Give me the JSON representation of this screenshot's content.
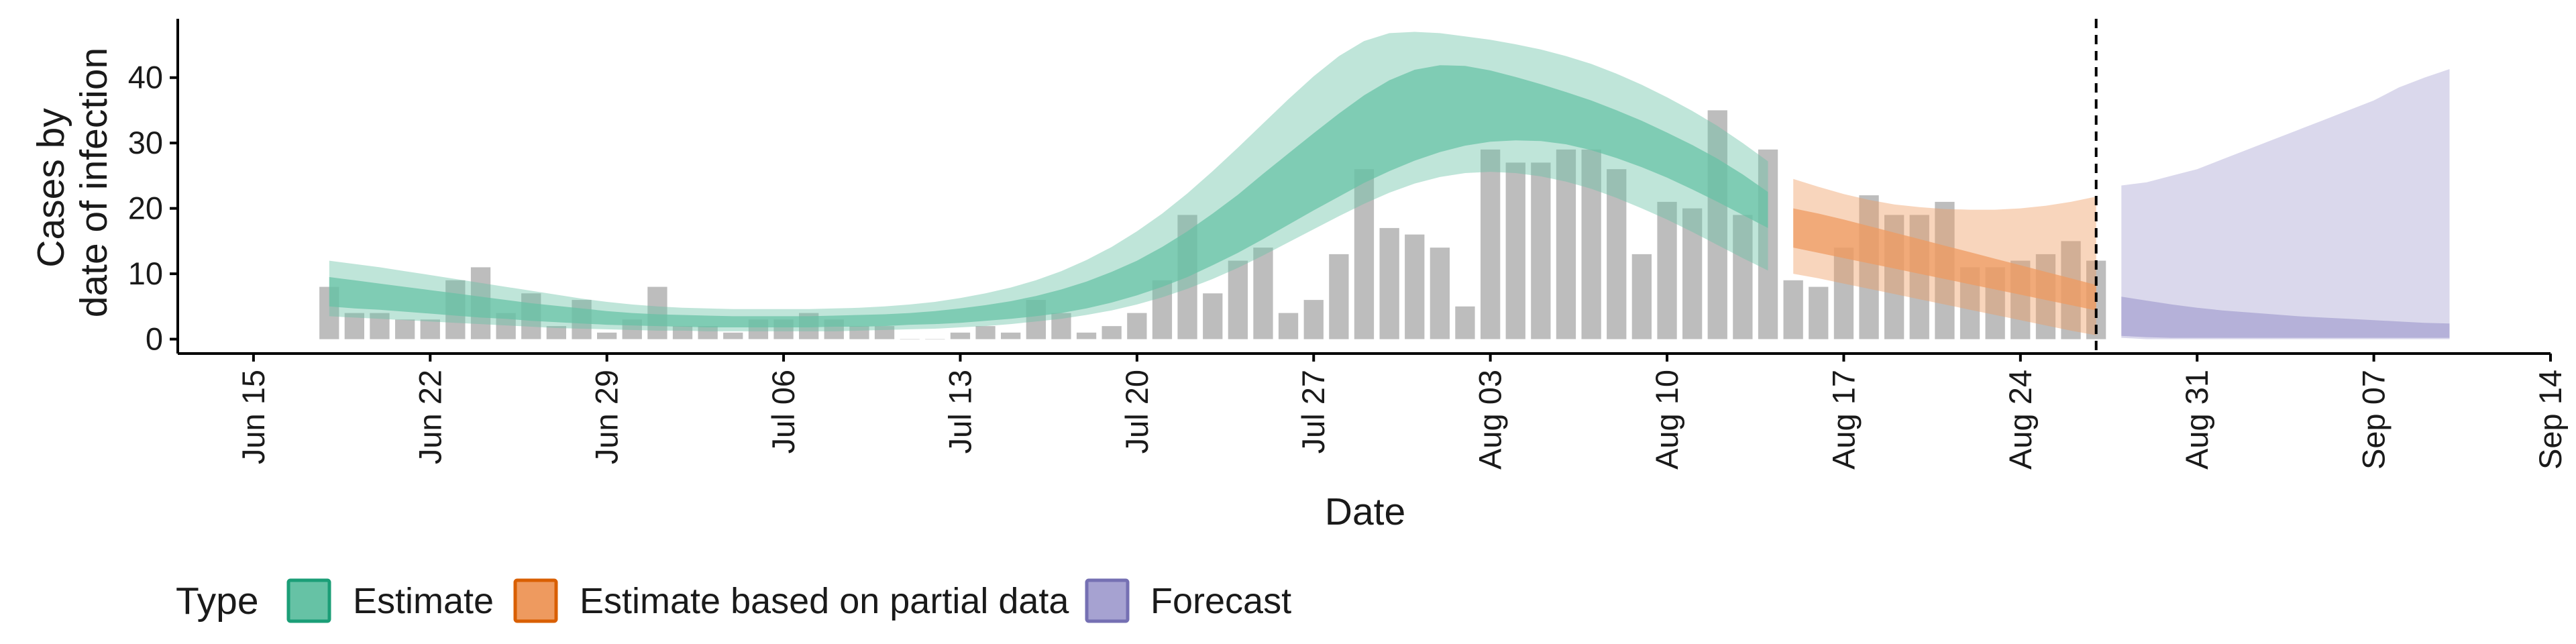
{
  "chart_data": {
    "type": "bar",
    "xlabel": "Date",
    "ylabel_lines": [
      "Cases by",
      "date of infection"
    ],
    "x_range": [
      "2020-06-12",
      "2020-09-14"
    ],
    "ylim": [
      -2.2,
      49
    ],
    "y_ticks": [
      0,
      10,
      20,
      30,
      40
    ],
    "x_ticks": [
      {
        "date": "2020-06-15",
        "label": "Jun 15"
      },
      {
        "date": "2020-06-22",
        "label": "Jun 22"
      },
      {
        "date": "2020-06-29",
        "label": "Jun 29"
      },
      {
        "date": "2020-07-06",
        "label": "Jul 06"
      },
      {
        "date": "2020-07-13",
        "label": "Jul 13"
      },
      {
        "date": "2020-07-20",
        "label": "Jul 20"
      },
      {
        "date": "2020-07-27",
        "label": "Jul 27"
      },
      {
        "date": "2020-08-03",
        "label": "Aug 03"
      },
      {
        "date": "2020-08-10",
        "label": "Aug 10"
      },
      {
        "date": "2020-08-17",
        "label": "Aug 17"
      },
      {
        "date": "2020-08-24",
        "label": "Aug 24"
      },
      {
        "date": "2020-08-31",
        "label": "Aug 31"
      },
      {
        "date": "2020-09-07",
        "label": "Sep 07"
      },
      {
        "date": "2020-09-14",
        "label": "Sep 14"
      }
    ],
    "bars": {
      "start_date": "2020-06-18",
      "color": "#bdbdbd",
      "values": [
        8,
        4,
        4,
        3,
        3,
        9,
        11,
        4,
        7,
        2,
        6,
        1,
        3,
        8,
        2,
        2,
        1,
        3,
        3,
        4,
        3,
        2,
        2,
        0,
        0,
        1,
        2,
        1,
        6,
        4,
        1,
        2,
        4,
        9,
        19,
        7,
        12,
        14,
        4,
        6,
        13,
        26,
        17,
        16,
        14,
        5,
        29,
        27,
        27,
        29,
        29,
        26,
        13,
        21,
        20,
        35,
        19,
        29,
        9,
        8,
        14,
        22,
        19,
        19,
        21,
        11,
        11,
        12,
        13,
        15,
        12
      ]
    },
    "vline_date": "2020-08-27",
    "series": [
      {
        "name": "Estimate",
        "fill": "#66c2a5",
        "border": "#1b9e77",
        "start_date": "2020-06-18",
        "median": [
          7.5,
          7,
          6.6,
          6.2,
          5.8,
          5.4,
          5,
          4.6,
          4.2,
          3.9,
          3.6,
          3.3,
          3.1,
          2.9,
          2.8,
          2.7,
          2.6,
          2.6,
          2.6,
          2.6,
          2.7,
          2.8,
          2.9,
          3.1,
          3.3,
          3.6,
          4,
          4.4,
          5,
          5.7,
          6.6,
          7.8,
          9.2,
          10.9,
          12.9,
          15.2,
          17.7,
          20.4,
          23.1,
          25.8,
          28.4,
          30.8,
          32.9,
          34.6,
          35.9,
          36.7,
          36.9,
          36.6,
          36,
          35.2,
          34.2,
          33,
          31.5,
          29.8,
          28,
          26,
          23.8,
          21.2
        ],
        "lo50": [
          5,
          4.7,
          4.5,
          4.2,
          3.9,
          3.6,
          3.3,
          3.1,
          2.8,
          2.6,
          2.4,
          2.2,
          2.1,
          2,
          1.9,
          1.8,
          1.8,
          1.8,
          1.8,
          1.8,
          1.9,
          1.9,
          2,
          2.2,
          2.3,
          2.5,
          2.8,
          3.1,
          3.5,
          4,
          4.7,
          5.6,
          6.7,
          8,
          9.5,
          11.3,
          13.2,
          15.3,
          17.5,
          19.7,
          21.8,
          23.9,
          25.7,
          27.3,
          28.6,
          29.6,
          30.2,
          30.4,
          30.3,
          29.8,
          28.9,
          27.7,
          26.3,
          24.7,
          22.9,
          21,
          19,
          17
        ],
        "hi50": [
          9.5,
          9,
          8.5,
          8,
          7.5,
          7,
          6.5,
          6,
          5.5,
          5.1,
          4.7,
          4.3,
          4,
          3.8,
          3.7,
          3.6,
          3.5,
          3.5,
          3.5,
          3.5,
          3.6,
          3.7,
          3.8,
          4,
          4.3,
          4.7,
          5.2,
          5.8,
          6.6,
          7.6,
          8.8,
          10.3,
          12,
          14.1,
          16.5,
          19.2,
          22.1,
          25.3,
          28.4,
          31.5,
          34.5,
          37.3,
          39.6,
          41.2,
          41.9,
          41.8,
          41.1,
          40.1,
          39,
          37.8,
          36.5,
          35,
          33.4,
          31.6,
          29.7,
          27.6,
          25.2,
          22.5
        ],
        "lo90": [
          3.5,
          3.3,
          3.1,
          2.9,
          2.7,
          2.5,
          2.3,
          2.1,
          1.9,
          1.7,
          1.6,
          1.5,
          1.4,
          1.3,
          1.3,
          1.2,
          1.2,
          1.2,
          1.2,
          1.2,
          1.2,
          1.3,
          1.4,
          1.5,
          1.6,
          1.8,
          2,
          2.3,
          2.7,
          3.1,
          3.7,
          4.4,
          5.3,
          6.4,
          7.7,
          9.2,
          10.9,
          12.8,
          14.8,
          16.8,
          18.8,
          20.7,
          22.4,
          23.8,
          24.8,
          25.4,
          25.6,
          25.4,
          24.9,
          24.1,
          23,
          21.6,
          20,
          18.3,
          16.4,
          14.4,
          12.4,
          10.5
        ],
        "hi90": [
          12,
          11.5,
          11,
          10.4,
          9.8,
          9.2,
          8.6,
          8,
          7.4,
          6.8,
          6.2,
          5.7,
          5.3,
          5,
          4.8,
          4.7,
          4.6,
          4.6,
          4.6,
          4.6,
          4.7,
          4.8,
          5,
          5.3,
          5.7,
          6.3,
          7,
          7.9,
          9,
          10.4,
          12.1,
          14.1,
          16.5,
          19.2,
          22.3,
          25.7,
          29.3,
          33,
          36.7,
          40.2,
          43.3,
          45.6,
          46.8,
          47,
          46.8,
          46.3,
          45.8,
          45.1,
          44.3,
          43.3,
          42.1,
          40.6,
          38.9,
          37,
          34.9,
          32.6,
          30,
          27.2
        ]
      },
      {
        "name": "Estimate based on partial data",
        "fill": "#ee9a5f",
        "border": "#d95f02",
        "start_date": "2020-08-15",
        "median": [
          17,
          16.2,
          15.3,
          14.4,
          13.5,
          12.6,
          11.7,
          10.8,
          9.9,
          9,
          8.1,
          7.2,
          6.3
        ],
        "lo50": [
          14,
          13.2,
          12.4,
          11.6,
          10.8,
          10,
          9.2,
          8.4,
          7.6,
          6.8,
          6,
          5.2,
          4.4
        ],
        "hi50": [
          20,
          19.2,
          18.3,
          17.3,
          16.3,
          15.3,
          14.3,
          13.3,
          12.3,
          11.3,
          10.3,
          9.3,
          8.3
        ],
        "lo90": [
          10,
          9.3,
          8.5,
          7.7,
          6.9,
          6.1,
          5.3,
          4.5,
          3.7,
          2.9,
          2.1,
          1.3,
          0.6
        ],
        "hi90": [
          24.5,
          23.3,
          22.2,
          21.3,
          20.6,
          20.2,
          19.9,
          19.8,
          19.8,
          20,
          20.4,
          21,
          21.8
        ]
      },
      {
        "name": "Forecast",
        "fill": "#a6a2d1",
        "border": "#7570b3",
        "start_date": "2020-08-28",
        "median": [
          4,
          3.6,
          3.2,
          2.9,
          2.6,
          2.4,
          2.2,
          2,
          1.9,
          1.8,
          1.7,
          1.6,
          1.5,
          1.4
        ],
        "lo50": [
          0.5,
          0.3,
          0.2,
          0.2,
          0.2,
          0.2,
          0.2,
          0.2,
          0.2,
          0.2,
          0.2,
          0.2,
          0.2,
          0.2
        ],
        "hi50": [
          6.5,
          5.9,
          5.3,
          4.8,
          4.4,
          4.1,
          3.8,
          3.5,
          3.3,
          3.1,
          2.9,
          2.7,
          2.5,
          2.4
        ],
        "lo90": [
          0.2,
          0,
          0,
          0,
          0,
          0,
          0,
          0,
          0,
          0,
          0,
          0,
          0,
          0
        ],
        "hi90": [
          23.5,
          24,
          25,
          26,
          27.5,
          29,
          30.5,
          32,
          33.5,
          35,
          36.5,
          38.5,
          40,
          41.3
        ]
      }
    ],
    "legend": {
      "position": "bottom",
      "title": "Type",
      "items": [
        {
          "label": "Estimate",
          "fill": "#66c2a5",
          "border": "#1b9e77"
        },
        {
          "label": "Estimate based on partial data",
          "fill": "#ee9a5f",
          "border": "#d95f02"
        },
        {
          "label": "Forecast",
          "fill": "#a6a2d1",
          "border": "#7570b3"
        }
      ]
    }
  }
}
